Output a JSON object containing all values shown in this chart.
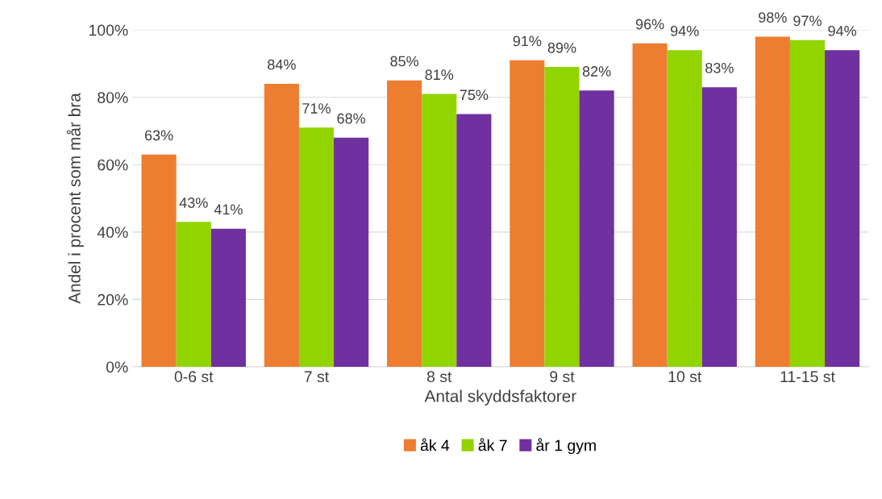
{
  "chart_data": {
    "type": "bar",
    "xlabel": "Antal skyddsfaktorer",
    "ylabel": "Andel i procent som mår bra",
    "categories": [
      "0-6 st",
      "7 st",
      "8 st",
      "9 st",
      "10 st",
      "11-15 st"
    ],
    "series": [
      {
        "name": "åk 4",
        "color": "#ed7d31",
        "values": [
          63,
          84,
          85,
          91,
          96,
          98
        ],
        "value_labels": [
          "63%",
          "84%",
          "85%",
          "91%",
          "96%",
          "98%"
        ]
      },
      {
        "name": "åk 7",
        "color": "#92d400",
        "values": [
          43,
          71,
          81,
          89,
          94,
          97
        ],
        "value_labels": [
          "43%",
          "71%",
          "81%",
          "89%",
          "94%",
          "97%"
        ]
      },
      {
        "name": "år 1 gym",
        "color": "#7030a0",
        "values": [
          41,
          68,
          75,
          82,
          83,
          94
        ],
        "value_labels": [
          "41%",
          "68%",
          "75%",
          "82%",
          "83%",
          "94%"
        ]
      }
    ],
    "ylim": [
      0,
      100
    ],
    "yticks": [
      {
        "value": 0,
        "label": "0%"
      },
      {
        "value": 20,
        "label": "20%"
      },
      {
        "value": 40,
        "label": "40%"
      },
      {
        "value": 60,
        "label": "60%"
      },
      {
        "value": 80,
        "label": "80%"
      },
      {
        "value": 100,
        "label": "100%"
      }
    ],
    "grid": "y",
    "legend": "bottom"
  }
}
